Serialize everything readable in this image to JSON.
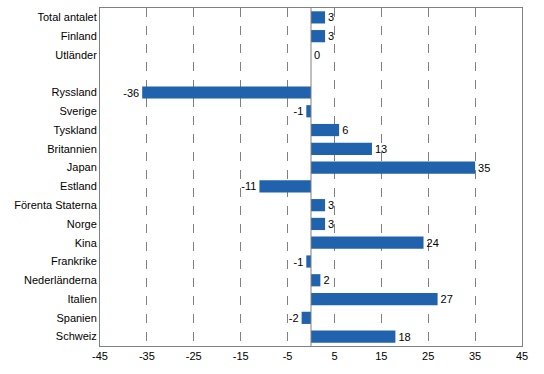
{
  "chart_data": {
    "type": "bar",
    "orientation": "horizontal",
    "categories": [
      "Total antalet",
      "Finland",
      "Utländer",
      null,
      "Ryssland",
      "Sverige",
      "Tyskland",
      "Britannien",
      "Japan",
      "Estland",
      "Förenta Staterna",
      "Norge",
      "Kina",
      "Frankrike",
      "Nederländerna",
      "Italien",
      "Spanien",
      "Schweiz"
    ],
    "values": [
      3,
      3,
      0,
      null,
      -36,
      -1,
      6,
      13,
      35,
      -11,
      3,
      3,
      24,
      -1,
      2,
      27,
      -2,
      18
    ],
    "color": "#2162ad",
    "xlim": [
      -45,
      45
    ],
    "xticks": [
      -45,
      -35,
      -25,
      -15,
      -5,
      5,
      15,
      25,
      35,
      45
    ],
    "grid": true,
    "data_labels": true
  }
}
